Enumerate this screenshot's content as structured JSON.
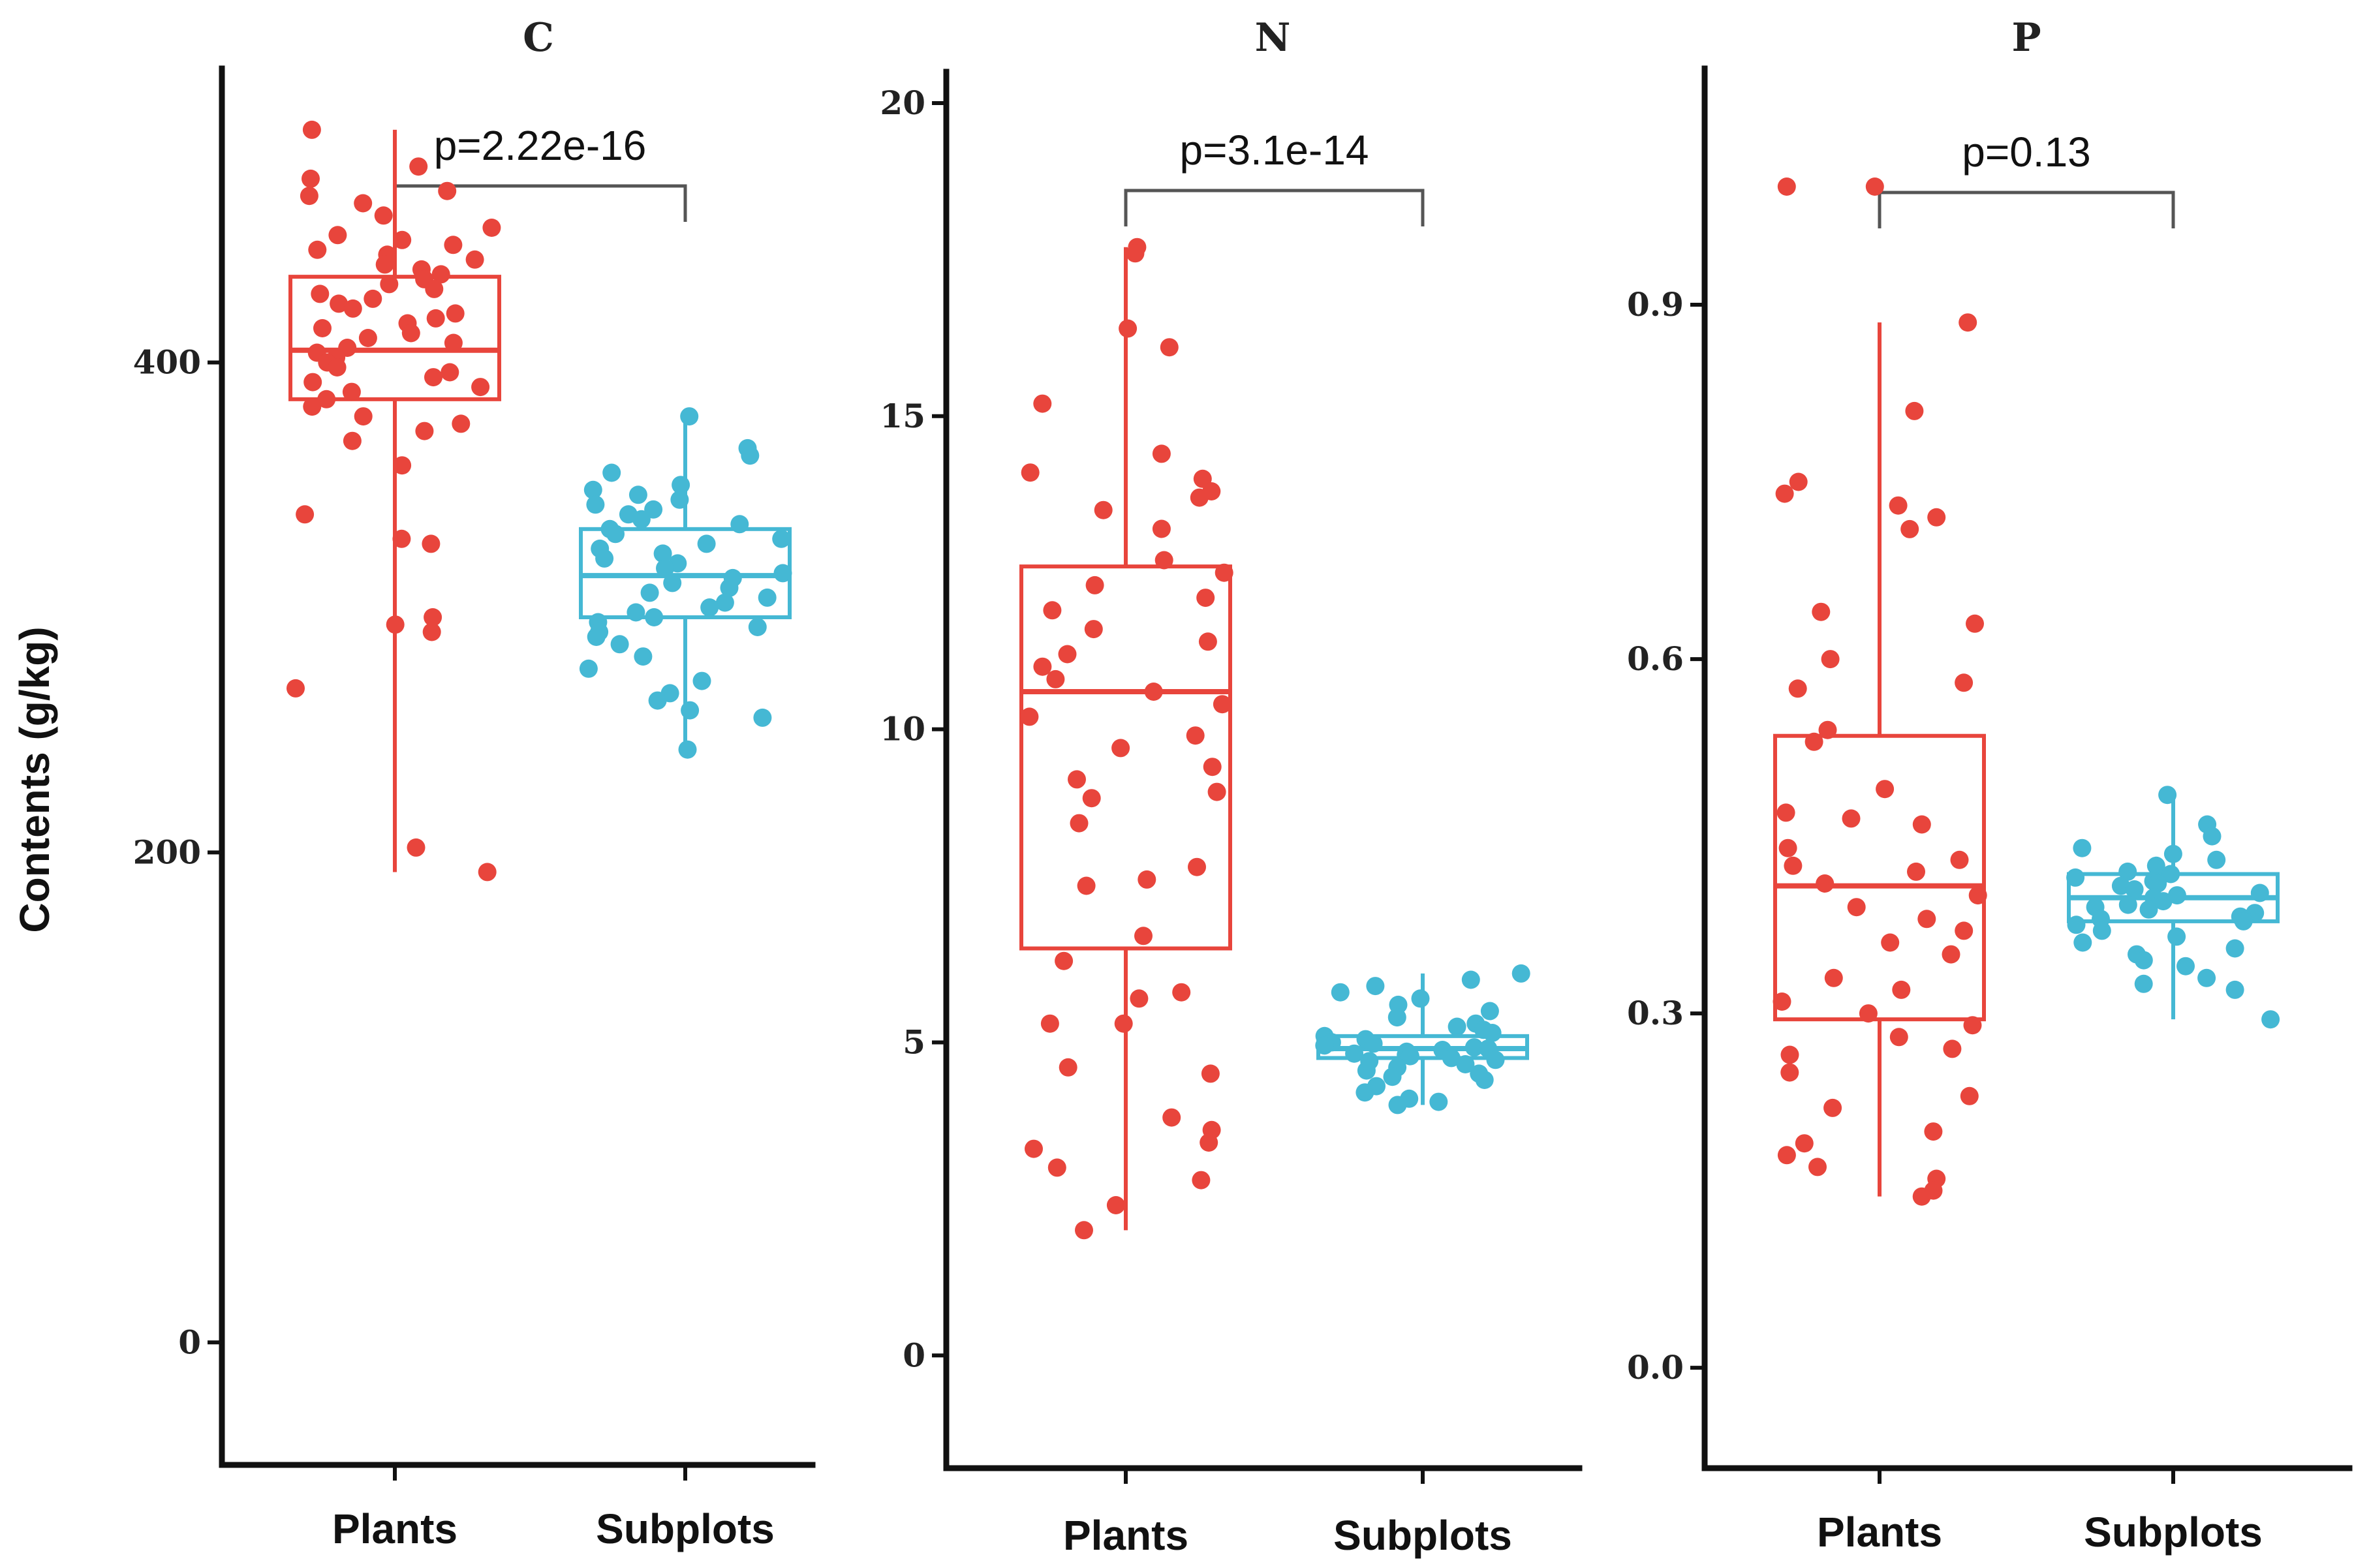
{
  "chart_data": [
    {
      "type": "box",
      "title": "C",
      "ylabel": "Contents (g/kg)",
      "ylim": [
        -50,
        520
      ],
      "yticks": [
        0,
        200,
        400
      ],
      "tick_labels": [
        "0",
        "200",
        "400"
      ],
      "categories": [
        "Plants",
        "Subplots"
      ],
      "p_value_label": "p=2.22e-16",
      "colors": [
        "#E8453C",
        "#45B8D4"
      ],
      "series": [
        {
          "name": "Plants",
          "box": {
            "q1": 385,
            "median": 405,
            "q3": 435,
            "whisker_low": 192,
            "whisker_high": 495
          },
          "points": [
            495,
            480,
            475,
            470,
            468,
            465,
            460,
            455,
            452,
            450,
            448,
            446,
            444,
            442,
            440,
            438,
            436,
            434,
            432,
            430,
            428,
            426,
            424,
            422,
            420,
            418,
            416,
            414,
            412,
            410,
            408,
            406,
            404,
            402,
            400,
            398,
            396,
            394,
            392,
            390,
            388,
            385,
            382,
            378,
            375,
            372,
            368,
            358,
            338,
            328,
            326,
            296,
            293,
            290,
            267,
            202,
            192
          ]
        },
        {
          "name": "Subplots",
          "box": {
            "q1": 296,
            "median": 313,
            "q3": 332,
            "whisker_low": 242,
            "whisker_high": 378
          },
          "points": [
            378,
            365,
            362,
            355,
            350,
            348,
            346,
            344,
            342,
            340,
            338,
            336,
            334,
            332,
            330,
            328,
            326,
            324,
            322,
            320,
            318,
            316,
            314,
            312,
            310,
            308,
            306,
            304,
            302,
            300,
            298,
            296,
            294,
            292,
            290,
            288,
            285,
            280,
            275,
            270,
            265,
            262,
            258,
            255,
            242
          ]
        }
      ]
    },
    {
      "type": "box",
      "title": "N",
      "ylim": [
        -1.8,
        20.5
      ],
      "yticks": [
        0,
        5,
        10,
        15,
        20
      ],
      "tick_labels": [
        "0",
        "5",
        "10",
        "15",
        "20"
      ],
      "categories": [
        "Plants",
        "Subplots"
      ],
      "p_value_label": "p=3.1e-14",
      "colors": [
        "#E8453C",
        "#45B8D4"
      ],
      "series": [
        {
          "name": "Plants",
          "box": {
            "q1": 6.5,
            "median": 10.6,
            "q3": 12.6,
            "whisker_low": 2.0,
            "whisker_high": 17.7
          },
          "points": [
            17.7,
            17.6,
            16.4,
            16.1,
            15.2,
            14.4,
            14.1,
            14.0,
            13.8,
            13.7,
            13.5,
            13.2,
            12.7,
            12.5,
            12.3,
            12.1,
            11.9,
            11.6,
            11.4,
            11.2,
            11.0,
            10.8,
            10.6,
            10.4,
            10.2,
            9.9,
            9.7,
            9.4,
            9.2,
            9.0,
            8.9,
            8.5,
            7.8,
            7.6,
            7.5,
            6.7,
            6.3,
            5.8,
            5.7,
            5.3,
            5.3,
            4.6,
            4.5,
            3.8,
            3.6,
            3.4,
            3.3,
            3.0,
            2.8,
            2.4,
            2.0
          ]
        },
        {
          "name": "Subplots",
          "box": {
            "q1": 4.75,
            "median": 4.9,
            "q3": 5.1,
            "whisker_low": 4.0,
            "whisker_high": 6.1
          },
          "points": [
            6.1,
            6.0,
            5.9,
            5.8,
            5.7,
            5.6,
            5.5,
            5.4,
            5.3,
            5.25,
            5.2,
            5.15,
            5.1,
            5.05,
            5.0,
            4.98,
            4.95,
            4.92,
            4.9,
            4.88,
            4.85,
            4.82,
            4.8,
            4.78,
            4.75,
            4.72,
            4.7,
            4.65,
            4.6,
            4.55,
            4.5,
            4.45,
            4.4,
            4.3,
            4.2,
            4.1,
            4.05,
            4.0
          ]
        }
      ]
    },
    {
      "type": "box",
      "title": "P",
      "ylim": [
        -0.085,
        1.1
      ],
      "yticks": [
        0.0,
        0.3,
        0.6,
        0.9
      ],
      "tick_labels": [
        "0.0",
        "0.3",
        "0.6",
        "0.9"
      ],
      "categories": [
        "Plants",
        "Subplots"
      ],
      "p_value_label": "p=0.13",
      "colors": [
        "#E8453C",
        "#45B8D4"
      ],
      "series": [
        {
          "name": "Plants",
          "box": {
            "q1": 0.295,
            "median": 0.408,
            "q3": 0.535,
            "whisker_low": 0.145,
            "whisker_high": 0.885
          },
          "points": [
            1.0,
            1.0,
            0.885,
            0.81,
            0.75,
            0.74,
            0.73,
            0.72,
            0.71,
            0.64,
            0.63,
            0.6,
            0.58,
            0.575,
            0.54,
            0.53,
            0.49,
            0.47,
            0.465,
            0.46,
            0.44,
            0.43,
            0.425,
            0.42,
            0.41,
            0.4,
            0.39,
            0.38,
            0.37,
            0.36,
            0.35,
            0.33,
            0.32,
            0.31,
            0.3,
            0.29,
            0.28,
            0.27,
            0.265,
            0.25,
            0.23,
            0.22,
            0.2,
            0.19,
            0.18,
            0.17,
            0.16,
            0.15,
            0.145
          ]
        },
        {
          "name": "Subplots",
          "box": {
            "q1": 0.378,
            "median": 0.398,
            "q3": 0.418,
            "whisker_low": 0.295,
            "whisker_high": 0.485
          },
          "points": [
            0.485,
            0.46,
            0.45,
            0.44,
            0.435,
            0.43,
            0.425,
            0.42,
            0.418,
            0.415,
            0.412,
            0.41,
            0.408,
            0.405,
            0.402,
            0.4,
            0.398,
            0.395,
            0.392,
            0.39,
            0.388,
            0.385,
            0.382,
            0.38,
            0.378,
            0.375,
            0.37,
            0.365,
            0.36,
            0.355,
            0.35,
            0.345,
            0.34,
            0.33,
            0.325,
            0.32,
            0.295
          ]
        }
      ]
    }
  ]
}
